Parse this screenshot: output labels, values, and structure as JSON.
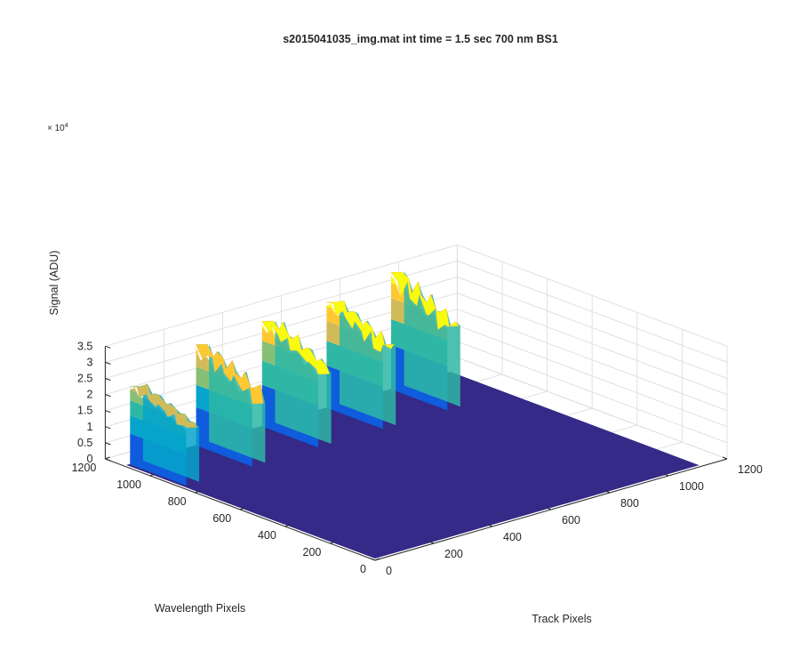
{
  "chart_data": {
    "type": "surface",
    "title": "s2015041035_img.mat int time = 1.5 sec  700 nm BS1",
    "zlabel": "Signal (ADU)",
    "xlabel": "Wavelength Pixels",
    "ylabel": "Track Pixels",
    "z_multiplier_base": "× 10",
    "z_multiplier_exp": "4",
    "zlim": [
      0,
      35000
    ],
    "xlim": [
      0,
      1200
    ],
    "ylim": [
      0,
      1200
    ],
    "zticks": [
      "0",
      "0.5",
      "1",
      "1.5",
      "2",
      "2.5",
      "3",
      "3.5"
    ],
    "xticks": [
      "0",
      "200",
      "400",
      "600",
      "800",
      "1000",
      "1200"
    ],
    "yticks": [
      "0",
      "200",
      "400",
      "600",
      "800",
      "1000",
      "1200"
    ],
    "wavelength_extent": [
      0,
      1100
    ],
    "track_extent": [
      0,
      1100
    ],
    "ridge_wavelength_range": [
      850,
      1100
    ],
    "ridges": [
      {
        "track_center": 30,
        "peak": 24500
      },
      {
        "track_center": 255,
        "peak": 30000
      },
      {
        "track_center": 480,
        "peak": 32500
      },
      {
        "track_center": 700,
        "peak": 33000
      },
      {
        "track_center": 920,
        "peak": 34500
      }
    ],
    "background_level": 700,
    "grid": true,
    "colormap": [
      "#352a87",
      "#0f5cdd",
      "#1481d6",
      "#06a4ca",
      "#2eb7a4",
      "#87bf77",
      "#d1bb59",
      "#fec832",
      "#f9fb0e"
    ]
  }
}
